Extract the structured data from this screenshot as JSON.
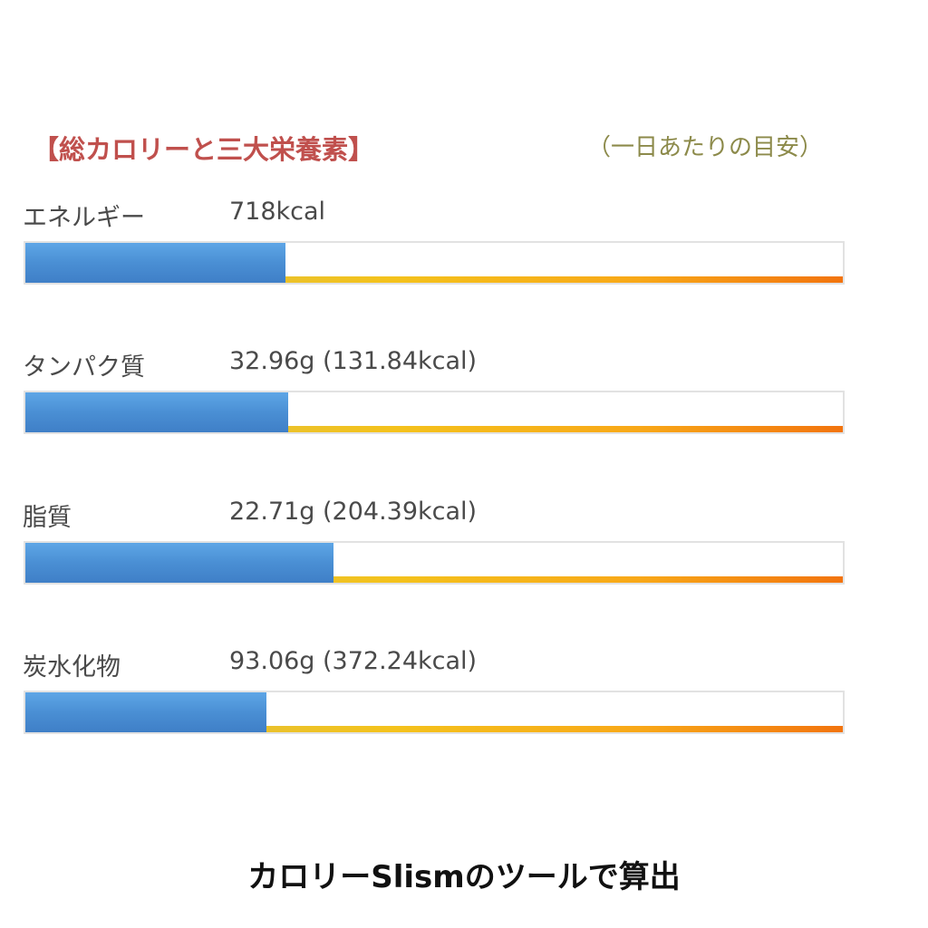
{
  "chart_data": {
    "type": "bar",
    "title": "【総カロリーと三大栄養素】",
    "subtitle": "（一日あたりの目安）",
    "xlim": [
      0,
      1
    ],
    "rows": [
      {
        "label": "エネルギー",
        "value_text": "718kcal",
        "fraction": 0.318
      },
      {
        "label": "タンパク質",
        "value_text": "32.96g (131.84kcal)",
        "fraction": 0.322
      },
      {
        "label": "脂質",
        "value_text": "22.71g (204.39kcal)",
        "fraction": 0.377
      },
      {
        "label": "炭水化物",
        "value_text": "93.06g (372.24kcal)",
        "fraction": 0.295
      }
    ]
  },
  "footer": {
    "caption": "カロリーSlismのツールで算出"
  },
  "colors": {
    "title": "#c0504d",
    "subtitle": "#8c8a4a",
    "bar_fill": "#4a8fd4",
    "guide_start": "#d7c04a",
    "guide_end": "#f2740e"
  }
}
